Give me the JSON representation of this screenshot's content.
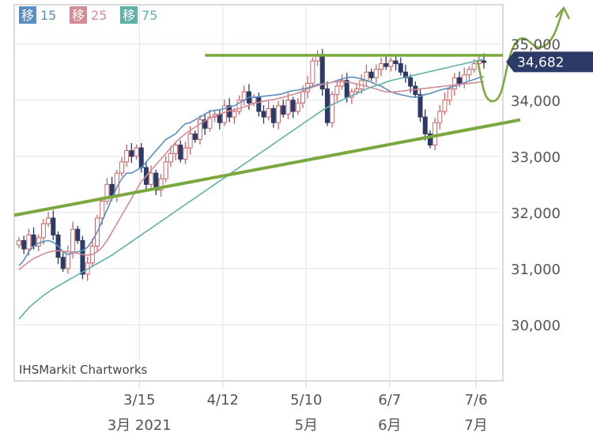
{
  "credit": "IHSMarkit Chartworks",
  "legend": [
    {
      "tag": "移",
      "period": "15",
      "color": "#5b8fc0"
    },
    {
      "tag": "移",
      "period": "25",
      "color": "#d28c93"
    },
    {
      "tag": "移",
      "period": "75",
      "color": "#5fb0a8"
    }
  ],
  "last_price_label": "34,682",
  "colors": {
    "up": "#ffffff",
    "up_stroke": "#cc6666",
    "down": "#2b3a66",
    "annotation": "#7aa73e",
    "last_tag": "#2b3a66"
  },
  "chart_data": {
    "type": "candlestick",
    "y_ticks": [
      "30,000",
      "31,000",
      "32,000",
      "33,000",
      "34,000",
      "35,000"
    ],
    "y_tick_values": [
      30000,
      31000,
      32000,
      33000,
      34000,
      35000
    ],
    "ylim": [
      29000,
      35700
    ],
    "x_ticks": [
      "3/15",
      "4/12",
      "5/10",
      "6/7",
      "7/6"
    ],
    "x_tick_dates": [
      "2021-03-15",
      "2021-04-12",
      "2021-05-10",
      "2021-06-07",
      "2021-07-06"
    ],
    "month_labels": [
      "3月 2021",
      "5月",
      "6月",
      "7月"
    ],
    "month_label_dates": [
      "2021-03-15",
      "2021-05-10",
      "2021-06-07",
      "2021-07-06"
    ],
    "xlim": [
      "2021-02-01",
      "2021-07-15"
    ],
    "last_price": 34682,
    "closes": [
      31500,
      31350,
      31600,
      31400,
      31550,
      31800,
      31900,
      31600,
      31200,
      31000,
      31300,
      31700,
      31500,
      30900,
      31100,
      31400,
      31900,
      32200,
      32500,
      32300,
      32700,
      32900,
      33100,
      33000,
      33150,
      32800,
      32500,
      32700,
      32400,
      32600,
      32900,
      33050,
      33200,
      32950,
      33150,
      33400,
      33300,
      33650,
      33500,
      33700,
      33750,
      33600,
      33900,
      33700,
      33800,
      34000,
      34150,
      33950,
      34050,
      33800,
      33700,
      33850,
      33600,
      33900,
      33750,
      34000,
      33800,
      33950,
      34150,
      34300,
      34700,
      34800,
      34200,
      33600,
      34100,
      34250,
      34350,
      34050,
      34150,
      34200,
      34350,
      34500,
      34400,
      34550,
      34650,
      34600,
      34700,
      34650,
      34500,
      34400,
      34250,
      34100,
      33700,
      33400,
      33200,
      33600,
      33800,
      34000,
      34200,
      34400,
      34300,
      34450,
      34550,
      34650,
      34700,
      34682
    ],
    "ma15": [
      31050,
      31150,
      31300,
      31400,
      31450,
      31480,
      31500,
      31470,
      31400,
      31300,
      31250,
      31280,
      31300,
      31320,
      31380,
      31500,
      31650,
      31850,
      32050,
      32250,
      32450,
      32600,
      32700,
      32700,
      32750,
      32800,
      32900,
      33000,
      33100,
      33200,
      33300,
      33350,
      33400,
      33500,
      33580,
      33600,
      33650,
      33700,
      33750,
      33800,
      33820,
      33830,
      33850,
      33880,
      33900,
      33950,
      34000,
      34050,
      34050,
      34060,
      34070,
      34080,
      34090,
      34100,
      34120,
      34150,
      34170,
      34180,
      34200,
      34220,
      34250,
      34280,
      34290,
      34300,
      34320,
      34350,
      34380,
      34400,
      34410,
      34400,
      34380,
      34350,
      34320,
      34280,
      34250,
      34200,
      34150,
      34120,
      34100,
      34080,
      34060,
      34050,
      34070,
      34100,
      34120,
      34150,
      34180,
      34200,
      34220,
      34250,
      34280,
      34310,
      34340,
      34370,
      34400,
      34420
    ],
    "ma25": [
      30980,
      31050,
      31120,
      31180,
      31220,
      31260,
      31290,
      31310,
      31320,
      31310,
      31300,
      31290,
      31270,
      31250,
      31240,
      31250,
      31300,
      31380,
      31500,
      31650,
      31800,
      31950,
      32100,
      32250,
      32400,
      32550,
      32650,
      32750,
      32850,
      32950,
      33050,
      33150,
      33250,
      33330,
      33400,
      33460,
      33520,
      33580,
      33630,
      33680,
      33720,
      33750,
      33780,
      33810,
      33830,
      33850,
      33880,
      33910,
      33940,
      33960,
      33980,
      34000,
      34010,
      34030,
      34050,
      34080,
      34100,
      34130,
      34160,
      34200,
      34230,
      34260,
      34280,
      34300,
      34320,
      34330,
      34330,
      34320,
      34310,
      34290,
      34270,
      34250,
      34220,
      34200,
      34170,
      34150,
      34140,
      34150,
      34160,
      34170,
      34180,
      34190,
      34200,
      34210,
      34220,
      34230,
      34240,
      34250,
      34260,
      34270,
      34280,
      34290,
      34300,
      34310,
      34320,
      34330
    ],
    "ma75": [
      30100,
      30200,
      30300,
      30380,
      30450,
      30520,
      30580,
      30640,
      30690,
      30740,
      30790,
      30840,
      30890,
      30940,
      30990,
      31040,
      31090,
      31140,
      31190,
      31240,
      31300,
      31360,
      31420,
      31480,
      31540,
      31600,
      31660,
      31720,
      31780,
      31840,
      31900,
      31960,
      32020,
      32080,
      32140,
      32200,
      32260,
      32320,
      32380,
      32440,
      32500,
      32560,
      32620,
      32680,
      32740,
      32800,
      32860,
      32920,
      32980,
      33040,
      33100,
      33160,
      33220,
      33280,
      33340,
      33400,
      33460,
      33520,
      33580,
      33640,
      33700,
      33760,
      33820,
      33870,
      33920,
      33960,
      34000,
      34040,
      34080,
      34120,
      34160,
      34200,
      34230,
      34260,
      34290,
      34320,
      34350,
      34370,
      34390,
      34410,
      34430,
      34450,
      34470,
      34490,
      34510,
      34530,
      34550,
      34570,
      34590,
      34610,
      34630,
      34650,
      34670,
      34690,
      34710,
      34730
    ]
  }
}
